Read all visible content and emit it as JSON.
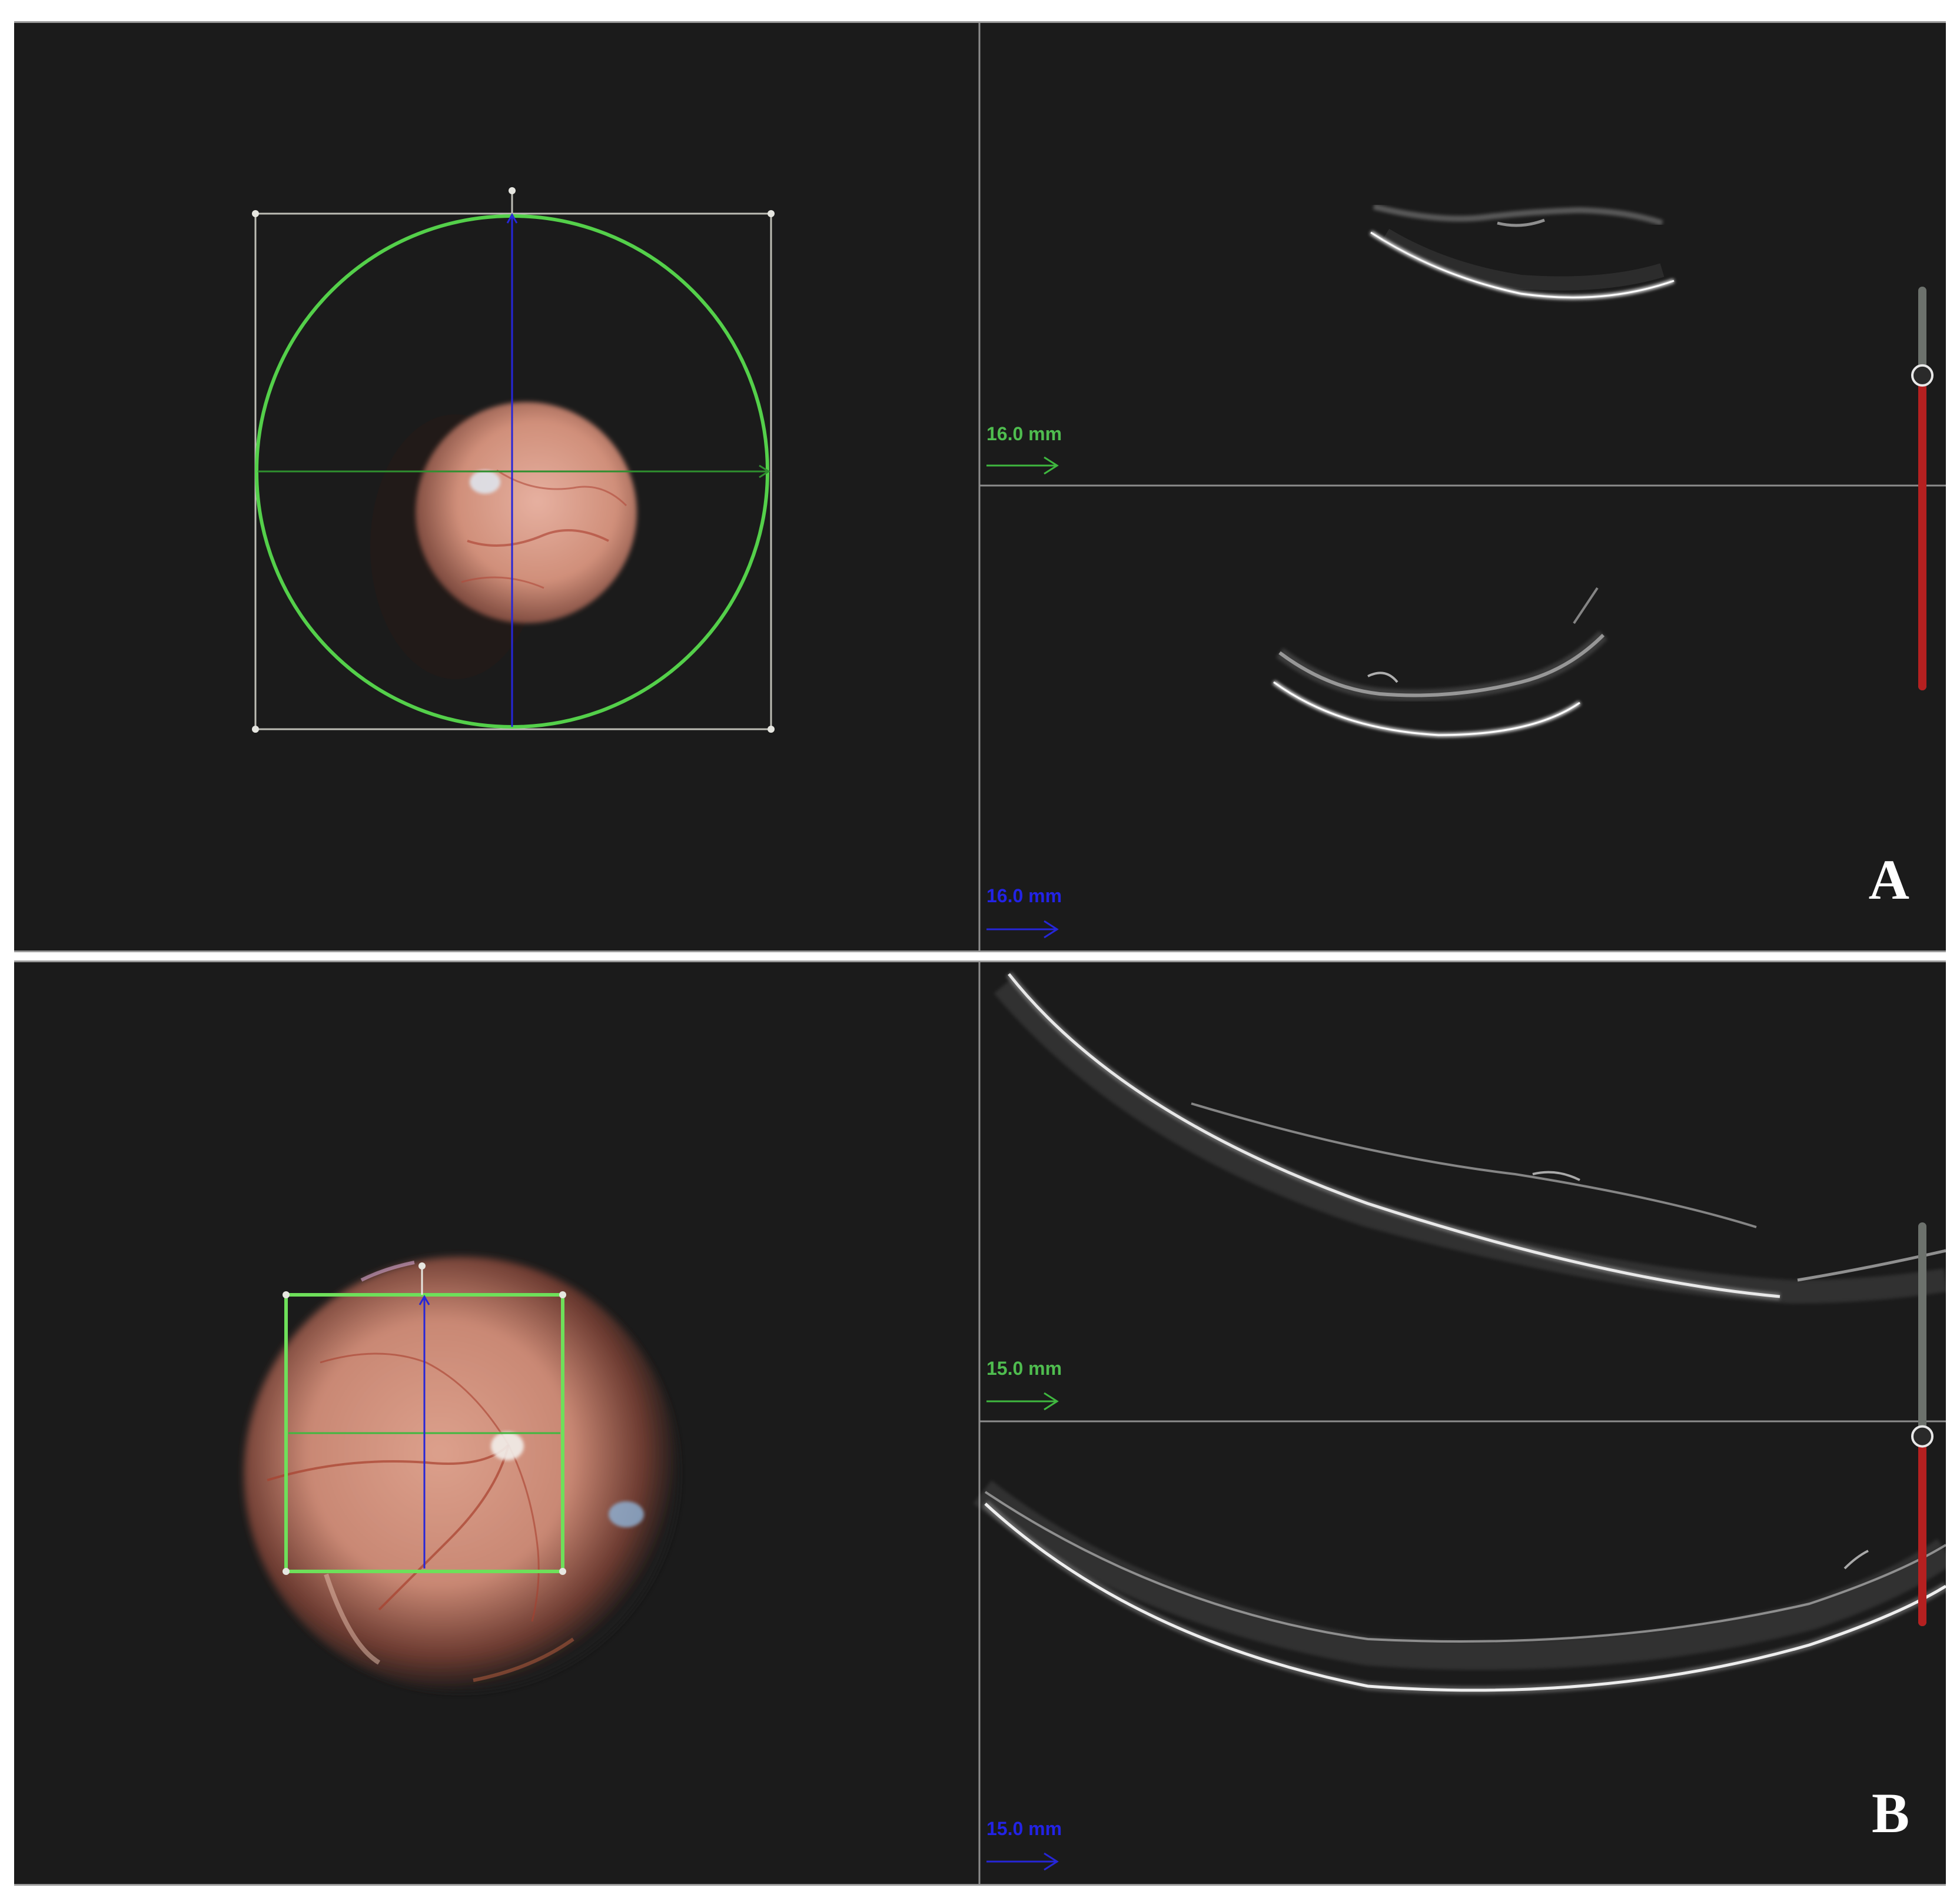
{
  "panels": [
    {
      "id": "A",
      "letter": "A",
      "top_scan_width": "16.0 mm",
      "bottom_scan_width": "16.0 mm",
      "slider_level": 0.22,
      "scan_pattern": "circle-cross"
    },
    {
      "id": "B",
      "letter": "B",
      "top_scan_width": "15.0 mm",
      "bottom_scan_width": "15.0 mm",
      "slider_level": 0.53,
      "scan_pattern": "square-cross"
    }
  ],
  "colors": {
    "background": "#1b1b1b",
    "horizontal_scan_line": "#3fb83f",
    "vertical_scan_line": "#2626d9",
    "scan_outline": "#5fdc50",
    "slider_fill": "#b52020",
    "slider_track": "#6c716c",
    "fundus": "#d99a82"
  },
  "icons": [
    "arrow-right-icon",
    "slider-knob-icon"
  ]
}
